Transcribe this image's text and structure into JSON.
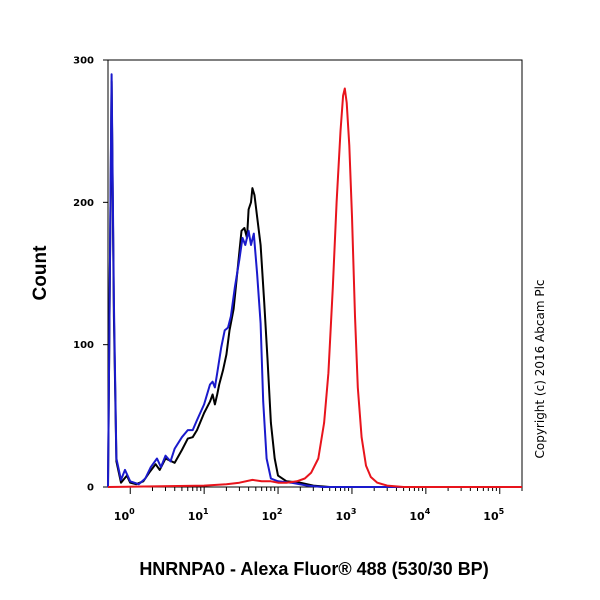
{
  "chart_data": {
    "type": "line",
    "title": "",
    "xlabel": "HNRNPA0 - Alexa Fluor® 488 (530/30 BP)",
    "ylabel": "Count",
    "x_scale": "log",
    "xlim": [
      0.5,
      200000
    ],
    "ylim": [
      0,
      300
    ],
    "x_ticks": [
      {
        "base": "10",
        "exp": "0"
      },
      {
        "base": "10",
        "exp": "1"
      },
      {
        "base": "10",
        "exp": "2"
      },
      {
        "base": "10",
        "exp": "3"
      },
      {
        "base": "10",
        "exp": "4"
      },
      {
        "base": "10",
        "exp": "5"
      }
    ],
    "y_ticks": [
      "0",
      "100",
      "200",
      "300"
    ],
    "y_tick_values": [
      0,
      100,
      200,
      300
    ],
    "grid": false,
    "annotation": "Copyright (c) 2016 Abcam Plc",
    "series": [
      {
        "color": "#000000",
        "points": [
          [
            0.5,
            0
          ],
          [
            0.56,
            285
          ],
          [
            0.6,
            120
          ],
          [
            0.65,
            18
          ],
          [
            0.75,
            3
          ],
          [
            0.9,
            8
          ],
          [
            1.0,
            3
          ],
          [
            1.2,
            2
          ],
          [
            1.5,
            4
          ],
          [
            1.8,
            10
          ],
          [
            2.2,
            16
          ],
          [
            2.5,
            12
          ],
          [
            3.0,
            20
          ],
          [
            4.0,
            17
          ],
          [
            5.0,
            26
          ],
          [
            6.0,
            34
          ],
          [
            7.0,
            35
          ],
          [
            8.0,
            40
          ],
          [
            10.0,
            52
          ],
          [
            12.0,
            60
          ],
          [
            13.0,
            65
          ],
          [
            14.0,
            58
          ],
          [
            15.0,
            65
          ],
          [
            16.0,
            72
          ],
          [
            18.0,
            82
          ],
          [
            20.0,
            93
          ],
          [
            22.0,
            110
          ],
          [
            25.0,
            125
          ],
          [
            28.0,
            150
          ],
          [
            32.0,
            180
          ],
          [
            35.0,
            182
          ],
          [
            38.0,
            175
          ],
          [
            40.0,
            195
          ],
          [
            43.0,
            200
          ],
          [
            45.0,
            210
          ],
          [
            48.0,
            205
          ],
          [
            52.0,
            190
          ],
          [
            58.0,
            170
          ],
          [
            65.0,
            130
          ],
          [
            72.0,
            90
          ],
          [
            80.0,
            45
          ],
          [
            90.0,
            20
          ],
          [
            100.0,
            8
          ],
          [
            130.0,
            4
          ],
          [
            200.0,
            3
          ],
          [
            300.0,
            1
          ],
          [
            500.0,
            0
          ],
          [
            1000.0,
            0
          ],
          [
            200000.0,
            0
          ]
        ]
      },
      {
        "color": "#1a1acc",
        "points": [
          [
            0.5,
            0
          ],
          [
            0.56,
            290
          ],
          [
            0.6,
            130
          ],
          [
            0.65,
            20
          ],
          [
            0.75,
            5
          ],
          [
            0.85,
            12
          ],
          [
            1.0,
            4
          ],
          [
            1.3,
            2
          ],
          [
            1.6,
            6
          ],
          [
            1.9,
            14
          ],
          [
            2.3,
            20
          ],
          [
            2.6,
            14
          ],
          [
            3.0,
            22
          ],
          [
            3.5,
            18
          ],
          [
            4.0,
            27
          ],
          [
            5.0,
            35
          ],
          [
            6.0,
            40
          ],
          [
            7.0,
            40
          ],
          [
            8.0,
            47
          ],
          [
            10.0,
            58
          ],
          [
            12.0,
            72
          ],
          [
            13.0,
            74
          ],
          [
            14.0,
            70
          ],
          [
            15.0,
            80
          ],
          [
            17.0,
            98
          ],
          [
            19.0,
            110
          ],
          [
            21.0,
            112
          ],
          [
            23.0,
            120
          ],
          [
            26.0,
            140
          ],
          [
            30.0,
            160
          ],
          [
            33.0,
            175
          ],
          [
            36.0,
            170
          ],
          [
            40.0,
            180
          ],
          [
            43.0,
            170
          ],
          [
            47.0,
            178
          ],
          [
            52.0,
            150
          ],
          [
            58.0,
            115
          ],
          [
            63.0,
            60
          ],
          [
            70.0,
            20
          ],
          [
            80.0,
            6
          ],
          [
            100.0,
            4
          ],
          [
            150.0,
            3
          ],
          [
            250.0,
            1
          ],
          [
            400.0,
            0
          ],
          [
            200000.0,
            0
          ]
        ]
      },
      {
        "color": "#e8141c",
        "points": [
          [
            0.5,
            0
          ],
          [
            10.0,
            1
          ],
          [
            20.0,
            2
          ],
          [
            30.0,
            3
          ],
          [
            45.0,
            5
          ],
          [
            60.0,
            4
          ],
          [
            80.0,
            4
          ],
          [
            100.0,
            3
          ],
          [
            130.0,
            3
          ],
          [
            180.0,
            4
          ],
          [
            230.0,
            6
          ],
          [
            280.0,
            10
          ],
          [
            350.0,
            20
          ],
          [
            420.0,
            45
          ],
          [
            480.0,
            80
          ],
          [
            550.0,
            140
          ],
          [
            620.0,
            200
          ],
          [
            700.0,
            250
          ],
          [
            760.0,
            275
          ],
          [
            800.0,
            280
          ],
          [
            850.0,
            270
          ],
          [
            920.0,
            240
          ],
          [
            1000.0,
            190
          ],
          [
            1100.0,
            120
          ],
          [
            1200.0,
            70
          ],
          [
            1350.0,
            35
          ],
          [
            1550.0,
            15
          ],
          [
            1800.0,
            7
          ],
          [
            2200.0,
            3
          ],
          [
            3000.0,
            1
          ],
          [
            5000.0,
            0
          ],
          [
            200000.0,
            0
          ]
        ]
      }
    ]
  }
}
